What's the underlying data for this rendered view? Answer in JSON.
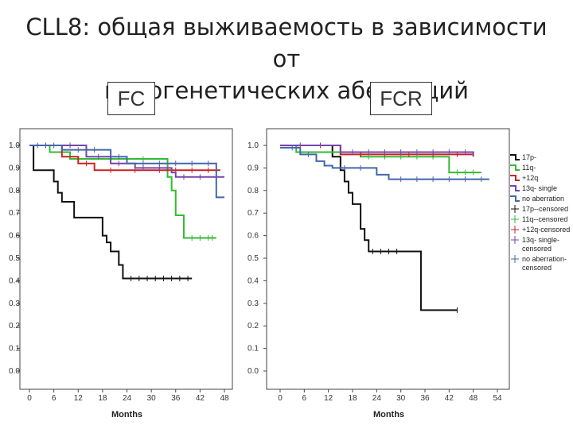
{
  "slide": {
    "title_line1": "CLL8: общая выживаемость в зависимости от",
    "title_line2": "цитогенетических аберраций"
  },
  "colors": {
    "17p": "#111111",
    "11q": "#33bb33",
    "+12q": "#cc2222",
    "13q": "#7744aa",
    "none": "#4466aa"
  },
  "legend": {
    "items": [
      {
        "label": "17p-",
        "series": "17p",
        "kind": "line"
      },
      {
        "label": "11q-",
        "series": "11q",
        "kind": "line"
      },
      {
        "label": "+12q",
        "series": "+12q",
        "kind": "line"
      },
      {
        "label": "13q- single",
        "series": "13q",
        "kind": "line"
      },
      {
        "label": "no aberration",
        "series": "none",
        "kind": "line"
      },
      {
        "label": "17p--censored",
        "series": "17p",
        "kind": "censor"
      },
      {
        "label": "11q--censored",
        "series": "11q",
        "kind": "censor"
      },
      {
        "label": "+12q-censored",
        "series": "+12q",
        "kind": "censor"
      },
      {
        "label": "13q- single-censored",
        "series": "13q",
        "kind": "censor"
      },
      {
        "label": "no aberration-censored",
        "series": "none",
        "kind": "censor"
      }
    ]
  },
  "chart_data": [
    {
      "type": "line",
      "panel_label": "FC",
      "xlabel": "Months",
      "ylabel": "",
      "xlim": [
        0,
        48
      ],
      "ylim": [
        0,
        1.0
      ],
      "xticks": [
        0,
        6,
        12,
        18,
        24,
        30,
        36,
        42,
        48
      ],
      "yticks": [
        "0.0",
        "0.1",
        "0.2",
        "0.3",
        "0.4",
        "0.5",
        "0.6",
        "0.7",
        "0.8",
        "0.9",
        "1.0"
      ],
      "series": [
        {
          "name": "17p-",
          "key": "17p",
          "x": [
            0,
            1,
            6,
            7,
            8,
            11,
            18,
            19,
            20,
            22,
            23,
            40
          ],
          "y": [
            1.0,
            0.89,
            0.84,
            0.79,
            0.75,
            0.68,
            0.6,
            0.57,
            0.53,
            0.47,
            0.41,
            0.41
          ],
          "censored_x": [
            25,
            27,
            29,
            31,
            33,
            35,
            37,
            39
          ]
        },
        {
          "name": "11q-",
          "key": "11q",
          "x": [
            0,
            5,
            10,
            34,
            35,
            36,
            38,
            46
          ],
          "y": [
            1.0,
            0.97,
            0.94,
            0.86,
            0.8,
            0.69,
            0.59,
            0.59
          ],
          "censored_x": [
            12,
            20,
            28,
            40,
            42,
            44,
            45
          ]
        },
        {
          "name": "+12q",
          "key": "+12q",
          "x": [
            0,
            8,
            12,
            16,
            47
          ],
          "y": [
            1.0,
            0.95,
            0.92,
            0.89,
            0.89
          ],
          "censored_x": [
            14,
            20,
            26,
            32,
            36,
            40,
            44
          ]
        },
        {
          "name": "13q- single",
          "key": "13q",
          "x": [
            0,
            14,
            20,
            26,
            35,
            36,
            48
          ],
          "y": [
            1.0,
            0.95,
            0.92,
            0.9,
            0.88,
            0.86,
            0.86
          ],
          "censored_x": [
            4,
            10,
            17,
            22,
            28,
            32,
            38,
            42,
            46
          ]
        },
        {
          "name": "no aberration",
          "key": "none",
          "x": [
            0,
            8,
            20,
            24,
            45,
            46,
            48
          ],
          "y": [
            1.0,
            0.98,
            0.95,
            0.92,
            0.92,
            0.77,
            0.77
          ],
          "censored_x": [
            2,
            4,
            6,
            12,
            16,
            22,
            28,
            32,
            36,
            40,
            44
          ]
        }
      ]
    },
    {
      "type": "line",
      "panel_label": "FCR",
      "xlabel": "Months",
      "ylabel": "",
      "xlim": [
        0,
        54
      ],
      "ylim": [
        0,
        1.0
      ],
      "xticks": [
        0,
        6,
        12,
        18,
        24,
        30,
        36,
        42,
        48,
        54
      ],
      "yticks": [
        "0.0",
        "0.1",
        "0.2",
        "0.3",
        "0.4",
        "0.5",
        "0.6",
        "0.7",
        "0.8",
        "0.9",
        "1.0"
      ],
      "series": [
        {
          "name": "17p-",
          "key": "17p",
          "x": [
            0,
            13,
            15,
            16,
            17,
            18,
            20,
            21,
            22,
            34,
            35,
            44
          ],
          "y": [
            1.0,
            0.95,
            0.89,
            0.84,
            0.79,
            0.74,
            0.63,
            0.58,
            0.53,
            0.53,
            0.27,
            0.27
          ],
          "censored_x": [
            23,
            25,
            27,
            29,
            44
          ]
        },
        {
          "name": "11q-",
          "key": "11q",
          "x": [
            0,
            4,
            20,
            41,
            42,
            50
          ],
          "y": [
            1.0,
            0.97,
            0.95,
            0.95,
            0.88,
            0.88
          ],
          "censored_x": [
            22,
            26,
            30,
            34,
            38,
            44,
            46,
            48
          ]
        },
        {
          "name": "+12q",
          "key": "+12q",
          "x": [
            0,
            15,
            48
          ],
          "y": [
            1.0,
            0.96,
            0.96
          ],
          "censored_x": [
            5,
            10,
            20,
            26,
            32,
            38,
            44
          ]
        },
        {
          "name": "13q- single",
          "key": "13q",
          "x": [
            0,
            15,
            48
          ],
          "y": [
            1.0,
            0.97,
            0.95
          ],
          "censored_x": [
            18,
            22,
            26,
            30,
            34,
            38,
            42,
            46
          ]
        },
        {
          "name": "no aberration",
          "key": "none",
          "x": [
            0,
            5,
            9,
            11,
            13,
            24,
            27,
            52
          ],
          "y": [
            0.99,
            0.96,
            0.93,
            0.91,
            0.9,
            0.87,
            0.85,
            0.85
          ],
          "censored_x": [
            3,
            7,
            16,
            20,
            30,
            34,
            38,
            42,
            46,
            50
          ]
        }
      ]
    }
  ]
}
